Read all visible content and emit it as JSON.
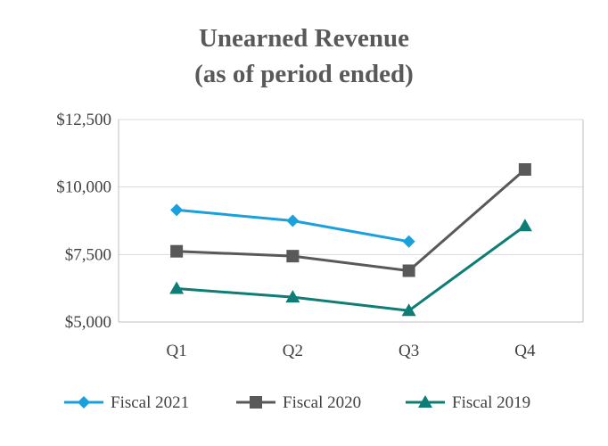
{
  "chart_data": {
    "type": "line",
    "title": [
      "Unearned Revenue",
      "(as of period ended)"
    ],
    "categories": [
      "Q1",
      "Q2",
      "Q3",
      "Q4"
    ],
    "ylim": [
      5000,
      12500
    ],
    "yticks": [
      5000,
      7500,
      10000,
      12500
    ],
    "ytick_labels": [
      "$5,000",
      "$7,500",
      "$10,000",
      "$12,500"
    ],
    "grid": true,
    "legend_position": "bottom",
    "series": [
      {
        "name": "Fiscal 2021",
        "color": "#1aa0dc",
        "marker": "diamond",
        "values": [
          9150,
          8750,
          7980,
          null
        ]
      },
      {
        "name": "Fiscal 2020",
        "color": "#595959",
        "marker": "square",
        "values": [
          7620,
          7440,
          6900,
          10650
        ]
      },
      {
        "name": "Fiscal 2019",
        "color": "#0e7d75",
        "marker": "triangle",
        "values": [
          6240,
          5920,
          5420,
          8560
        ]
      }
    ]
  }
}
